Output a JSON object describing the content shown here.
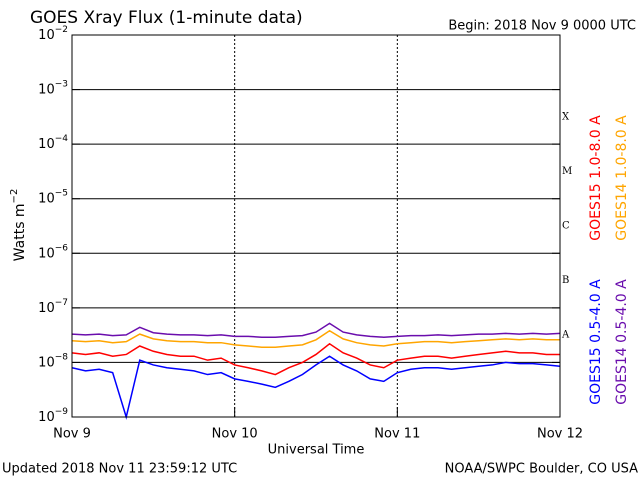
{
  "chart_data": {
    "type": "line",
    "title": "GOES Xray Flux (1-minute data)",
    "begin": "Begin:  2018 Nov 9 0000 UTC",
    "x_label": "Universal Time",
    "y_label": "Watts m",
    "y_label_exponent": "−2",
    "updated": "Updated 2018 Nov 11 23:59:12 UTC",
    "source": "NOAA/SWPC Boulder, CO USA",
    "log_y": true,
    "grid": true,
    "flare_classes": [
      "A",
      "B",
      "C",
      "M",
      "X"
    ],
    "xlim": [
      0,
      72
    ],
    "xticks": [
      {
        "value": 0,
        "label": "Nov 9"
      },
      {
        "value": 24,
        "label": "Nov 10"
      },
      {
        "value": 48,
        "label": "Nov 11"
      },
      {
        "value": 72,
        "label": "Nov 12"
      }
    ],
    "ylim": [
      1e-09,
      0.01
    ],
    "yticks": [
      {
        "value": 1e-09,
        "label": "10",
        "exponent": "−9"
      },
      {
        "value": 1e-08,
        "label": "10",
        "exponent": "−8"
      },
      {
        "value": 1e-07,
        "label": "10",
        "exponent": "−7"
      },
      {
        "value": 1e-06,
        "label": "10",
        "exponent": "−6"
      },
      {
        "value": 1e-05,
        "label": "10",
        "exponent": "−5"
      },
      {
        "value": 0.0001,
        "label": "10",
        "exponent": "−4"
      },
      {
        "value": 0.001,
        "label": "10",
        "exponent": "−3"
      },
      {
        "value": 0.01,
        "label": "10",
        "exponent": "−2"
      }
    ],
    "x": [
      0,
      2,
      4,
      6,
      8,
      10,
      12,
      14,
      16,
      18,
      20,
      22,
      24,
      26,
      28,
      30,
      32,
      34,
      36,
      38,
      40,
      42,
      44,
      46,
      48,
      50,
      52,
      54,
      56,
      58,
      60,
      62,
      64,
      66,
      68,
      70,
      72
    ],
    "series": [
      {
        "name": "GOES15 1.0-8.0 A",
        "color": "#ff0000",
        "values": [
          1.5e-08,
          1.4e-08,
          1.5e-08,
          1.3e-08,
          1.4e-08,
          2e-08,
          1.6e-08,
          1.4e-08,
          1.3e-08,
          1.3e-08,
          1.1e-08,
          1.2e-08,
          9e-09,
          8e-09,
          7e-09,
          6e-09,
          8e-09,
          1e-08,
          1.4e-08,
          2.2e-08,
          1.5e-08,
          1.2e-08,
          9e-09,
          8e-09,
          1.1e-08,
          1.2e-08,
          1.3e-08,
          1.3e-08,
          1.2e-08,
          1.3e-08,
          1.4e-08,
          1.5e-08,
          1.6e-08,
          1.5e-08,
          1.5e-08,
          1.4e-08,
          1.4e-08
        ]
      },
      {
        "name": "GOES14 1.0-8.0 A",
        "color": "#ffa500",
        "values": [
          2.5e-08,
          2.4e-08,
          2.5e-08,
          2.3e-08,
          2.4e-08,
          3.3e-08,
          2.7e-08,
          2.5e-08,
          2.4e-08,
          2.4e-08,
          2.3e-08,
          2.3e-08,
          2.1e-08,
          2e-08,
          1.9e-08,
          1.9e-08,
          2e-08,
          2.1e-08,
          2.6e-08,
          3.8e-08,
          2.7e-08,
          2.3e-08,
          2.1e-08,
          2e-08,
          2.2e-08,
          2.3e-08,
          2.4e-08,
          2.4e-08,
          2.3e-08,
          2.4e-08,
          2.5e-08,
          2.6e-08,
          2.7e-08,
          2.6e-08,
          2.7e-08,
          2.6e-08,
          2.6e-08
        ]
      },
      {
        "name": "GOES15 0.5-4.0 A",
        "color": "#0000ff",
        "values": [
          8e-09,
          7e-09,
          7.5e-09,
          6.5e-09,
          1e-09,
          1.1e-08,
          9e-09,
          8e-09,
          7.5e-09,
          7e-09,
          6e-09,
          6.5e-09,
          5e-09,
          4.5e-09,
          4e-09,
          3.5e-09,
          4.5e-09,
          6e-09,
          9e-09,
          1.3e-08,
          9e-09,
          7e-09,
          5e-09,
          4.5e-09,
          6.5e-09,
          7.5e-09,
          8e-09,
          8e-09,
          7.5e-09,
          8e-09,
          8.5e-09,
          9e-09,
          1e-08,
          9.5e-09,
          9.5e-09,
          9e-09,
          8.5e-09
        ]
      },
      {
        "name": "GOES14 0.5-4.0 A",
        "color": "#6a0dad",
        "values": [
          3.3e-08,
          3.2e-08,
          3.3e-08,
          3.1e-08,
          3.2e-08,
          4.4e-08,
          3.5e-08,
          3.3e-08,
          3.2e-08,
          3.2e-08,
          3.1e-08,
          3.2e-08,
          3e-08,
          3e-08,
          2.9e-08,
          2.9e-08,
          3e-08,
          3.1e-08,
          3.6e-08,
          5.2e-08,
          3.6e-08,
          3.2e-08,
          3e-08,
          2.9e-08,
          3e-08,
          3.1e-08,
          3.1e-08,
          3.2e-08,
          3.1e-08,
          3.2e-08,
          3.3e-08,
          3.3e-08,
          3.4e-08,
          3.3e-08,
          3.4e-08,
          3.3e-08,
          3.4e-08
        ]
      }
    ]
  }
}
